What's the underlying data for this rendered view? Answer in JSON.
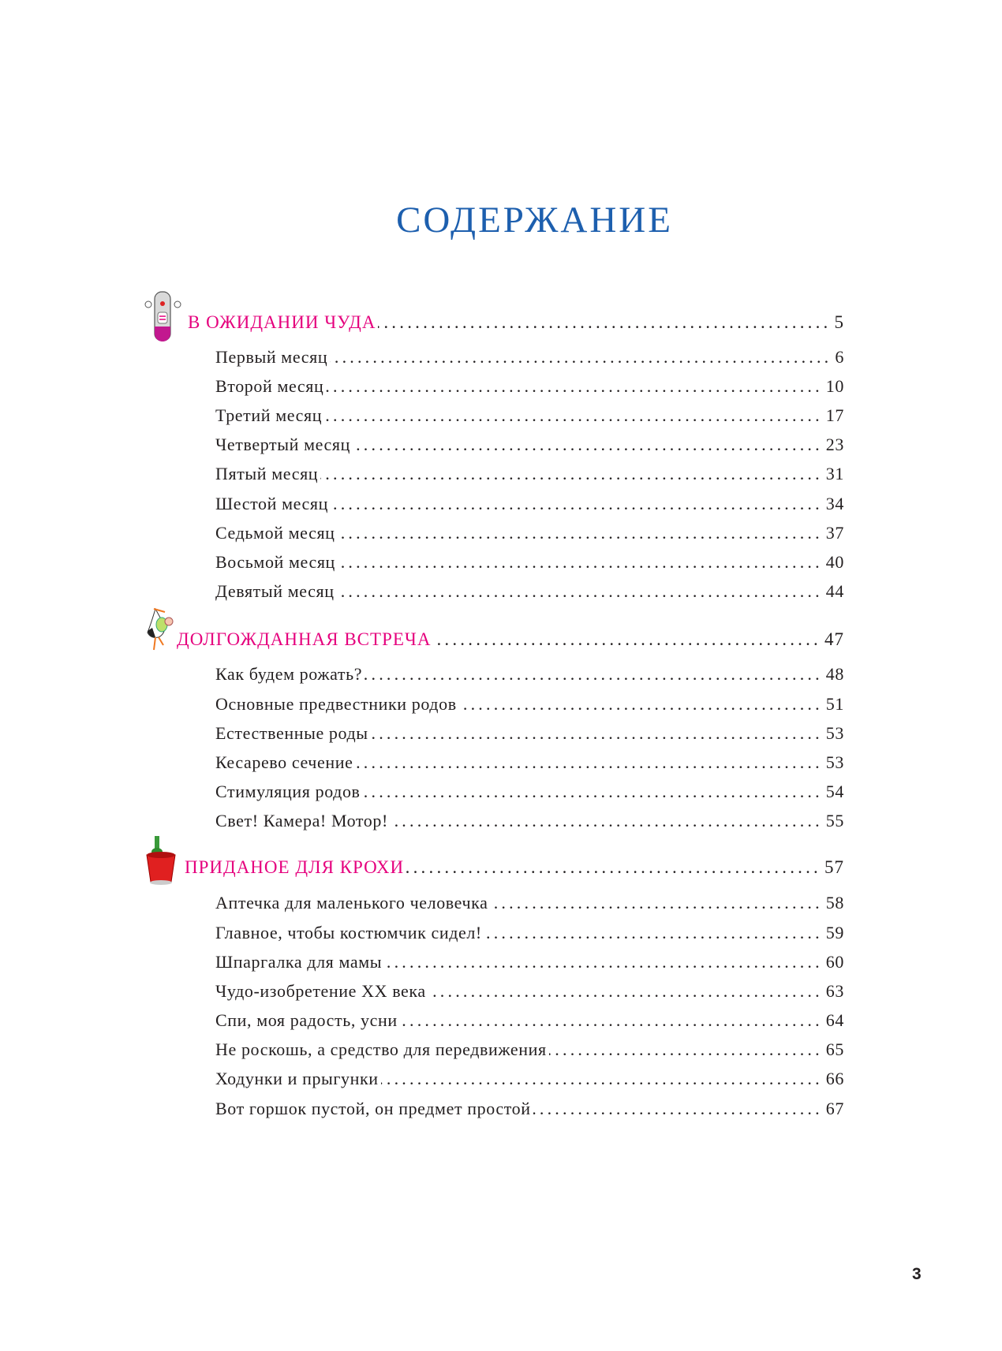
{
  "title": "СОДЕРЖАНИЕ",
  "sections": [
    {
      "label": "В ОЖИДАНИИ ЧУДА",
      "page": "5",
      "icon": "pregnancy-test-icon",
      "items": [
        {
          "label": "Первый месяц",
          "page": "6"
        },
        {
          "label": "Второй месяц",
          "page": "10"
        },
        {
          "label": "Третий месяц",
          "page": "17"
        },
        {
          "label": "Четвертый месяц",
          "page": "23"
        },
        {
          "label": "Пятый месяц",
          "page": "31"
        },
        {
          "label": "Шестой месяц",
          "page": "34"
        },
        {
          "label": "Седьмой месяц",
          "page": "37"
        },
        {
          "label": "Восьмой месяц",
          "page": "40"
        },
        {
          "label": "Девятый месяц",
          "page": "44"
        }
      ]
    },
    {
      "label": "ДОЛГОЖДАННАЯ ВСТРЕЧА",
      "page": "47",
      "icon": "stork-icon",
      "items": [
        {
          "label": "Как будем рожать?",
          "page": "48"
        },
        {
          "label": "Основные предвестники родов",
          "page": "51"
        },
        {
          "label": "Естественные роды",
          "page": "53"
        },
        {
          "label": "Кесарево сечение",
          "page": "53"
        },
        {
          "label": "Стимуляция родов",
          "page": "54"
        },
        {
          "label": "Свет! Камера! Мотор!",
          "page": "55"
        }
      ]
    },
    {
      "label": "ПРИДАНОЕ ДЛЯ КРОХИ",
      "page": "57",
      "icon": "bucket-icon",
      "items": [
        {
          "label": "Аптечка для маленького человечка",
          "page": "58"
        },
        {
          "label": "Главное, чтобы костюмчик сидел!",
          "page": "59"
        },
        {
          "label": "Шпаргалка для мамы",
          "page": "60"
        },
        {
          "label": "Чудо-изобретение XX века",
          "page": "63"
        },
        {
          "label": "Спи, моя радость, усни",
          "page": "64"
        },
        {
          "label": "Не роскошь, а средство для передвижения",
          "page": "65"
        },
        {
          "label": "Ходунки и прыгунки",
          "page": "66"
        },
        {
          "label": "Вот горшок пустой, он предмет простой",
          "page": "67"
        }
      ]
    }
  ],
  "page_number": "3",
  "colors": {
    "title": "#1d5fae",
    "section_heading": "#e5007d",
    "text": "#231f20"
  }
}
